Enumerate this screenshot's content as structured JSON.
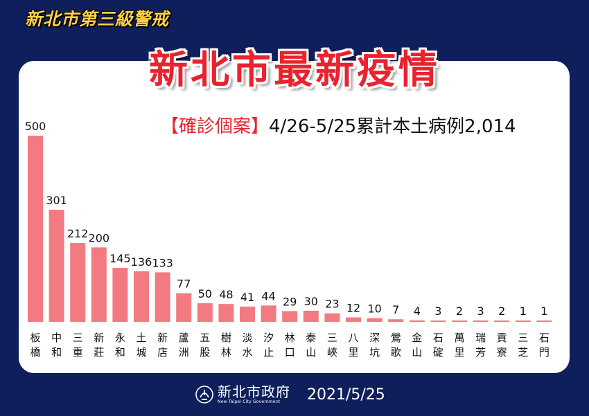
{
  "header": {
    "alert_label": "新北市第三級警戒",
    "title": "新北市最新疫情"
  },
  "subtitle": {
    "tag": "【確診個案】",
    "text": "4/26-5/25累計本土病例2,014"
  },
  "footer": {
    "org_name": "新北市政府",
    "org_name_en": "New Taipei City Government",
    "date": "2021/5/25"
  },
  "colors": {
    "background": "#0f1f5c",
    "bar": "#f47a82",
    "title": "#e8232f",
    "alert": "#ffd24a"
  },
  "chart_data": {
    "type": "bar",
    "title": "",
    "xlabel": "",
    "ylabel": "",
    "categories": [
      "板橋",
      "中和",
      "三重",
      "新莊",
      "永和",
      "土城",
      "新店",
      "蘆洲",
      "五股",
      "樹林",
      "淡水",
      "汐止",
      "林口",
      "泰山",
      "三峽",
      "八里",
      "深坑",
      "鶯歌",
      "金山",
      "石碇",
      "萬里",
      "瑞芳",
      "貢寮",
      "三芝",
      "石門"
    ],
    "values": [
      500,
      301,
      212,
      200,
      145,
      136,
      133,
      77,
      50,
      48,
      41,
      44,
      29,
      30,
      23,
      12,
      10,
      7,
      4,
      3,
      2,
      3,
      2,
      1,
      1
    ],
    "ylim": [
      0,
      500
    ],
    "grid": false,
    "legend": "none"
  }
}
